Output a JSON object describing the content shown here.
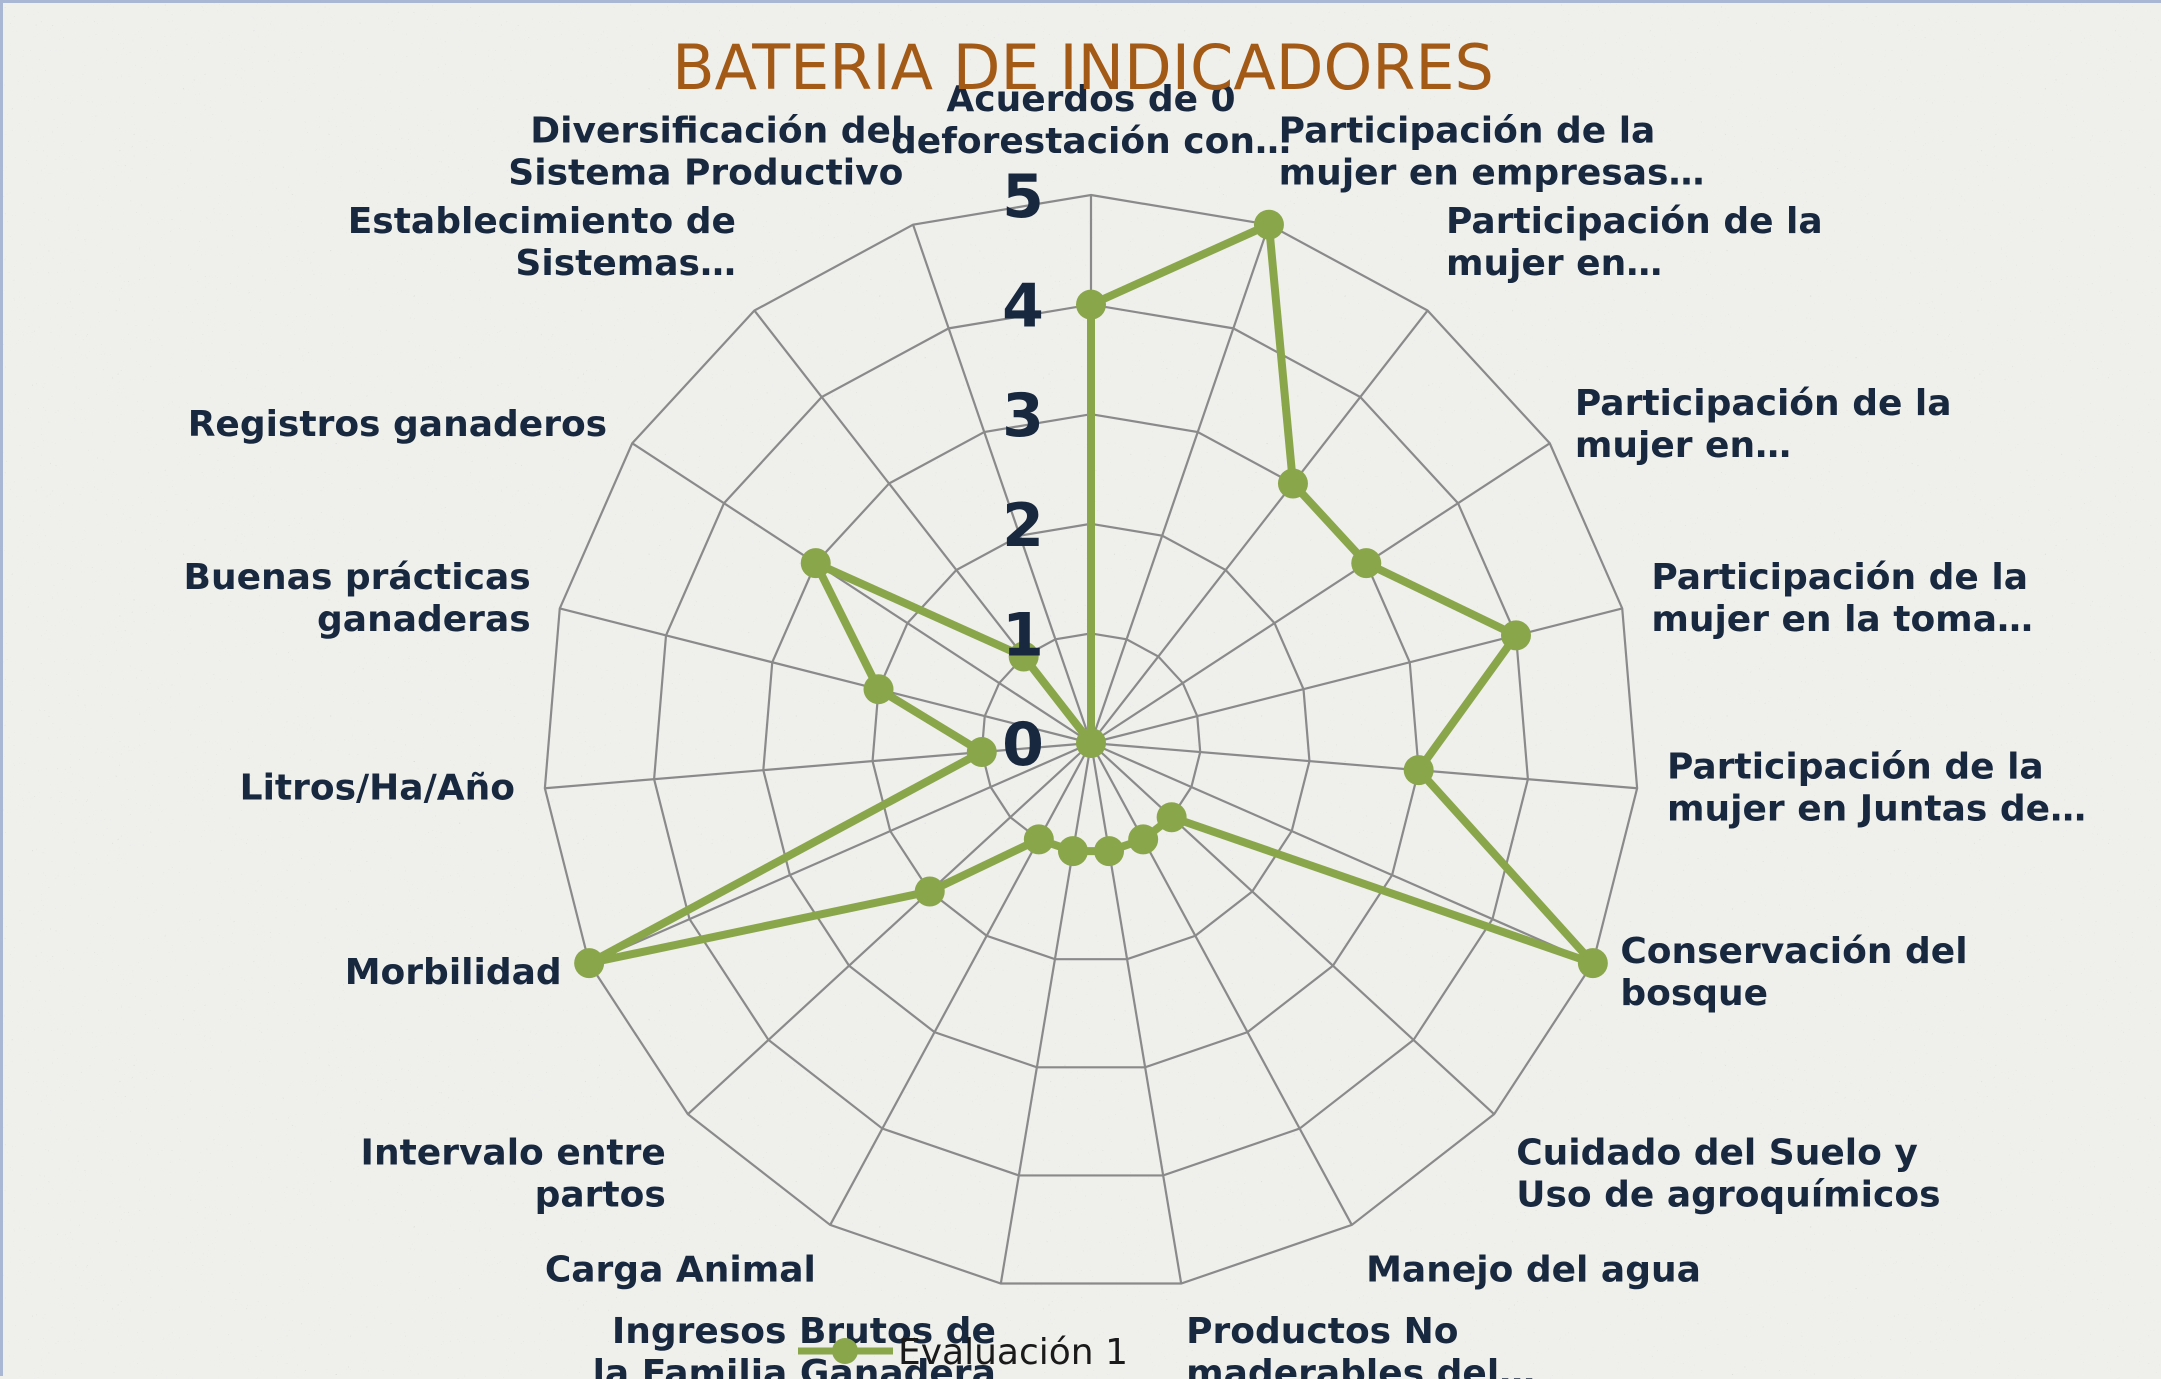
{
  "chart_data": {
    "type": "radar",
    "title": "BATERIA DE INDICADORES",
    "categories": [
      "Acuerdos de 0 deforestación con…",
      "Participación de la mujer en empresas…",
      "Participación de la mujer en…",
      "Participación de la mujer en…",
      "Participación de la mujer en la toma…",
      "Participación de la mujer en Juntas de…",
      "Conservación del bosque",
      "Cuidado del Suelo y Uso de agroquímicos",
      "Manejo del agua",
      "Productos No maderables del…",
      "Ingresos Brutos de la Familia Ganadera",
      "Carga Animal",
      "Intervalo entre partos",
      "Morbilidad",
      "Litros/Ha/Año",
      "Buenas prácticas ganaderas",
      "Registros ganaderos",
      "Establecimiento de Sistemas…",
      "Diversificación del Sistema Productivo"
    ],
    "series": [
      {
        "name": "Evaluación 1",
        "color": "#8aa64a",
        "values": [
          4,
          5,
          3,
          3,
          4,
          3,
          5,
          1,
          1,
          1,
          1,
          1,
          2,
          5,
          1,
          2,
          3,
          1,
          0
        ]
      }
    ],
    "rlim": [
      0,
      5
    ],
    "ticks": [
      "0",
      "1",
      "2",
      "3",
      "4",
      "5"
    ],
    "grid": true,
    "legend": "bottom"
  }
}
